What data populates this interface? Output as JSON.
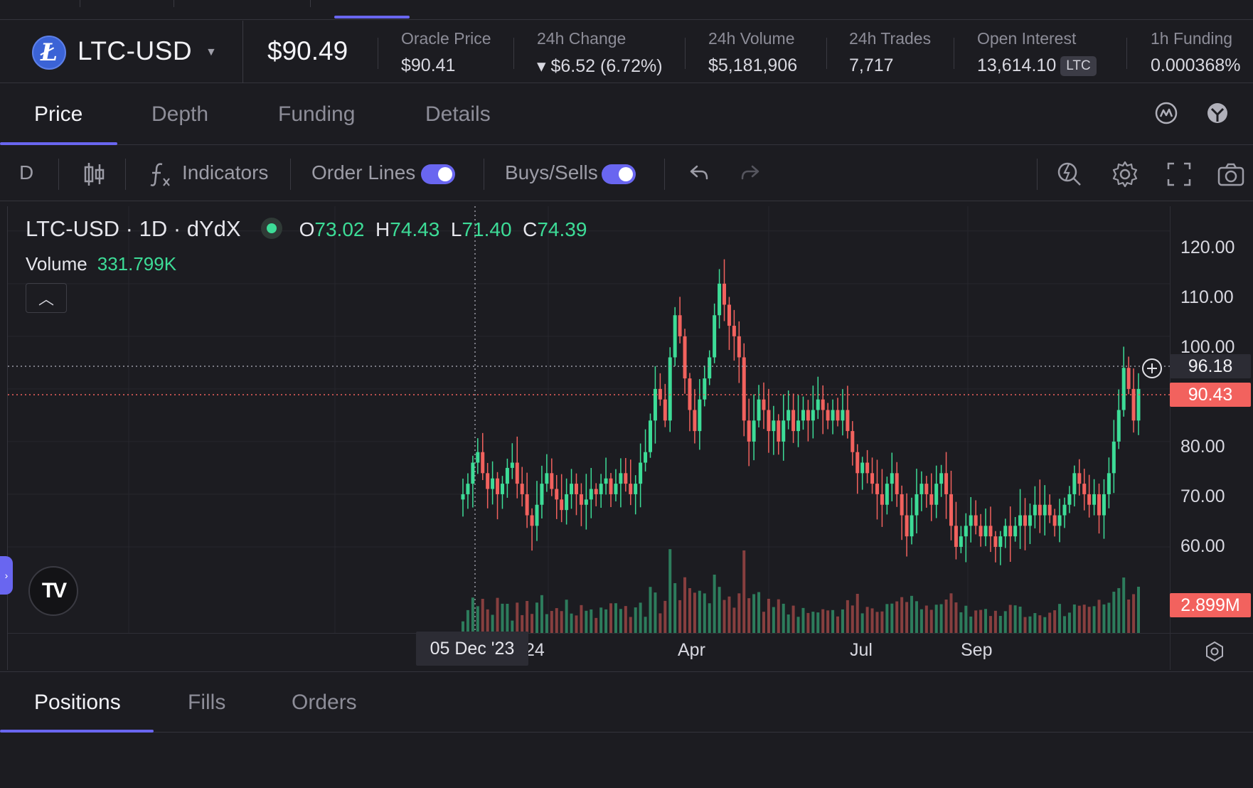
{
  "market": {
    "pair": "LTC-USD",
    "price": "$90.49",
    "stats": [
      {
        "label": "Oracle Price",
        "value": "$90.41",
        "tone": "neutral"
      },
      {
        "label": "24h Change",
        "value": "▾ $6.52 (6.72%)",
        "tone": "red"
      },
      {
        "label": "24h Volume",
        "value": "$5,181,906",
        "tone": "neutral"
      },
      {
        "label": "24h Trades",
        "value": "7,717",
        "tone": "neutral"
      },
      {
        "label": "Open Interest",
        "value": "13,614.10",
        "badge": "LTC",
        "tone": "neutral"
      },
      {
        "label": "1h Funding",
        "value": "0.000368%",
        "tone": "green"
      }
    ],
    "coin_icon": "litecoin-icon",
    "coin_glyph": "Ł"
  },
  "tabs": [
    "Price",
    "Depth",
    "Funding",
    "Details"
  ],
  "toolbar": {
    "interval": "D",
    "indicators": "Indicators",
    "order_lines": "Order Lines",
    "buys_sells": "Buys/Sells"
  },
  "chart": {
    "symbol_line": "LTC-USD · 1D · dYdX",
    "ohlc": {
      "O": "73.02",
      "H": "74.43",
      "L": "71.40",
      "C": "74.39"
    },
    "volume_label": "Volume",
    "volume_value": "331.799K",
    "crosshair_price": "96.18",
    "last_price": "90.43",
    "volume_tag": "2.899M",
    "date_tip": "05 Dec '23",
    "x_partial": "24",
    "tv_logo": "TV",
    "colors": {
      "up": "#3ddc97",
      "down": "#f2625e",
      "accent": "#6966f0"
    }
  },
  "chart_data": {
    "type": "candlestick",
    "y_ticks": [
      "120.00",
      "110.00",
      "100.00",
      "80.00",
      "70.00",
      "60.00"
    ],
    "x_ticks": [
      "Apr",
      "Jul",
      "Sep"
    ],
    "ylim": [
      45,
      122
    ],
    "close_series": [
      70,
      72,
      76,
      78,
      74,
      71,
      73,
      70,
      72,
      75,
      76,
      72,
      70,
      66,
      64,
      68,
      72,
      74,
      71,
      69,
      67,
      70,
      72,
      70,
      68,
      69,
      71,
      70,
      72,
      73,
      70,
      72,
      74,
      72,
      70,
      72,
      76,
      78,
      84,
      90,
      88,
      84,
      96,
      104,
      100,
      92,
      86,
      82,
      88,
      92,
      96,
      104,
      110,
      106,
      102,
      100,
      96,
      84,
      80,
      84,
      88,
      86,
      82,
      84,
      80,
      84,
      86,
      82,
      84,
      86,
      84,
      86,
      88,
      86,
      84,
      86,
      84,
      86,
      82,
      78,
      74,
      76,
      74,
      72,
      70,
      68,
      72,
      74,
      70,
      66,
      62,
      66,
      70,
      72,
      70,
      68,
      72,
      74,
      70,
      64,
      60,
      62,
      64,
      66,
      64,
      62,
      64,
      62,
      60,
      62,
      64,
      62,
      64,
      66,
      64,
      66,
      68,
      66,
      68,
      66,
      64,
      66,
      68,
      70,
      74,
      72,
      70,
      68,
      70,
      66,
      70,
      74,
      80,
      86,
      94,
      90,
      84,
      90
    ]
  },
  "bottom_tabs": [
    "Positions",
    "Fills",
    "Orders"
  ]
}
